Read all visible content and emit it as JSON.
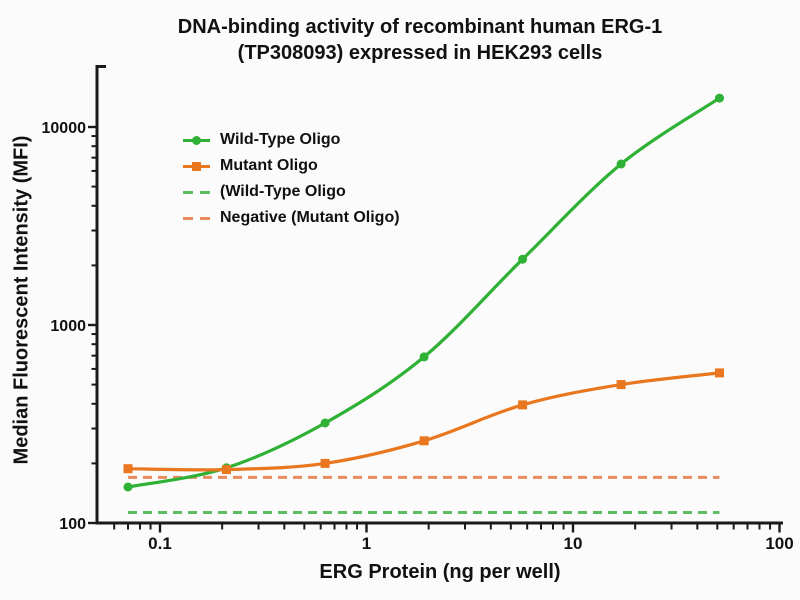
{
  "title": {
    "line1": "DNA-binding activity of recombinant human ERG-1",
    "line2": "(TP308093) expressed in HEK293 cells"
  },
  "chart_data": {
    "type": "line",
    "title": "DNA-binding activity of recombinant human ERG-1 (TP308093) expressed in HEK293 cells",
    "xlabel": "ERG Protein (ng per well)",
    "ylabel": "Median  Fluorescent Intensity  (MFI)",
    "x_scale": "log",
    "y_scale": "log",
    "xlim": [
      0.05,
      100
    ],
    "ylim": [
      100,
      20000
    ],
    "x_ticks": [
      0.1,
      1,
      10,
      100
    ],
    "y_ticks": [
      100,
      1000,
      10000
    ],
    "grid": false,
    "legend_position": "upper left inside",
    "x": [
      0.07,
      0.21,
      0.63,
      1.9,
      5.7,
      17.1,
      51.2
    ],
    "series": [
      {
        "name": "Wild-Type Oligo",
        "type": "curve",
        "style": "solid",
        "marker": "circle",
        "color": "#2eb135",
        "values": [
          152,
          190,
          320,
          690,
          2150,
          6500,
          14000
        ]
      },
      {
        "name": "Mutant Oligo",
        "type": "curve",
        "style": "solid",
        "marker": "square",
        "color": "#e8771f",
        "values": [
          188,
          186,
          200,
          260,
          395,
          500,
          573
        ]
      },
      {
        "name": "(Wild-Type Oligo",
        "type": "baseline",
        "style": "dashed",
        "marker": "none",
        "color": "#5cbd63",
        "constant": 113,
        "span": [
          0.07,
          51.2
        ]
      },
      {
        "name": "Negative (Mutant Oligo)",
        "type": "baseline",
        "style": "dashed",
        "marker": "none",
        "color": "#e98b5e",
        "constant": 170,
        "span": [
          0.07,
          51.2
        ]
      }
    ]
  },
  "colors": {
    "axis": "#1a1a1a",
    "text": "#111111",
    "background": "#fbfbfb",
    "wild_type": "#2eb135",
    "mutant": "#e8771f",
    "negative_wild_type": "#5cbd63",
    "negative_mutant": "#e98b5e"
  }
}
